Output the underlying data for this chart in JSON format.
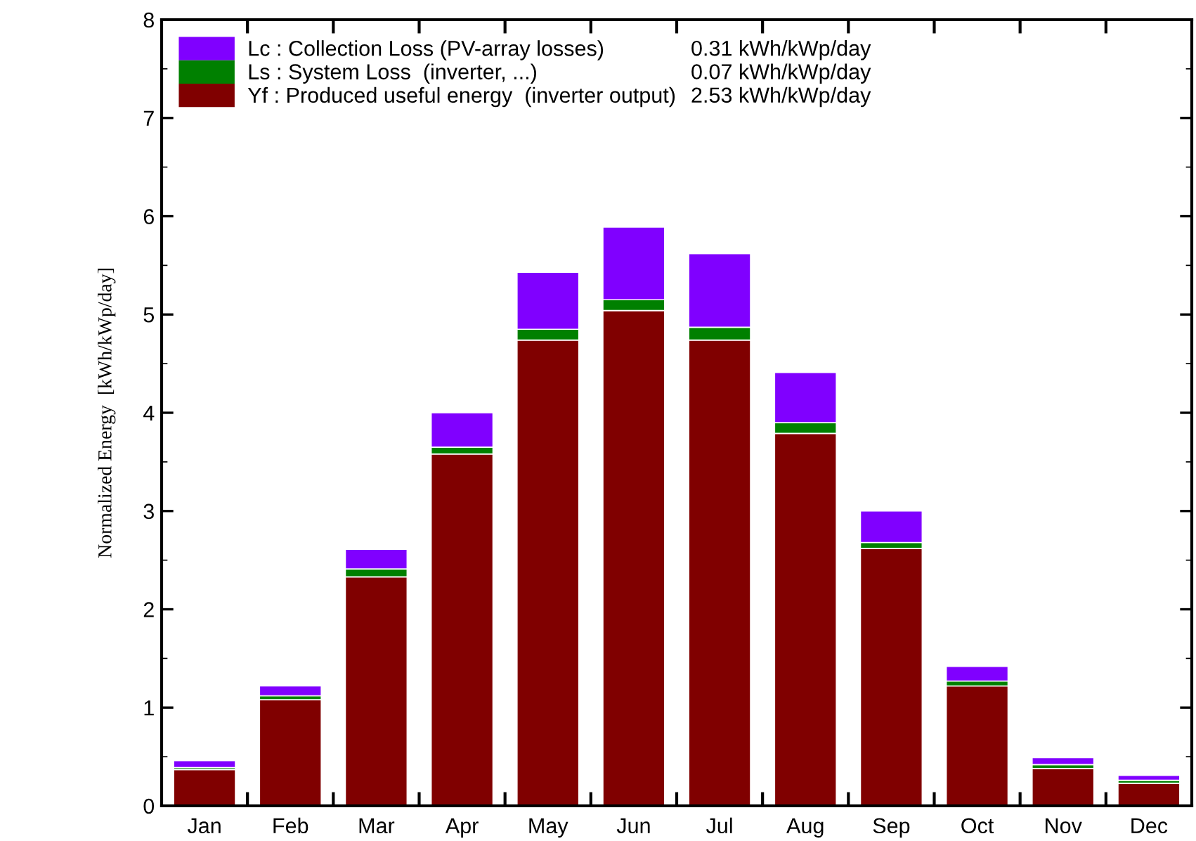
{
  "chart_data": {
    "type": "bar",
    "stacked": true,
    "ylabel": "Normalized Energy  [kWh/kWp/day]",
    "categories": [
      "Jan",
      "Feb",
      "Mar",
      "Apr",
      "May",
      "Jun",
      "Jul",
      "Aug",
      "Sep",
      "Oct",
      "Nov",
      "Dec"
    ],
    "series": [
      {
        "name": "Yf : Produced useful energy  (inverter output)",
        "color": "#800000",
        "values": [
          0.37,
          1.08,
          2.33,
          3.58,
          4.74,
          5.04,
          4.74,
          3.79,
          2.62,
          1.22,
          0.38,
          0.23
        ]
      },
      {
        "name": "Ls : System Loss  (inverter, ...)",
        "color": "#008000",
        "values": [
          0.02,
          0.04,
          0.08,
          0.07,
          0.11,
          0.11,
          0.13,
          0.11,
          0.06,
          0.05,
          0.04,
          0.03
        ]
      },
      {
        "name": "Lc : Collection Loss (PV-array losses)",
        "color": "#8000ff",
        "values": [
          0.07,
          0.1,
          0.2,
          0.35,
          0.58,
          0.74,
          0.75,
          0.51,
          0.32,
          0.15,
          0.07,
          0.05
        ]
      }
    ],
    "annotations": [
      "2.53 kWh/kWp/day",
      "0.07 kWh/kWp/day",
      "0.31 kWh/kWp/day"
    ],
    "ylim": [
      0,
      8
    ],
    "yticks": [
      0,
      1,
      2,
      3,
      4,
      5,
      6,
      7,
      8
    ],
    "grid": false,
    "legend": "top left"
  }
}
